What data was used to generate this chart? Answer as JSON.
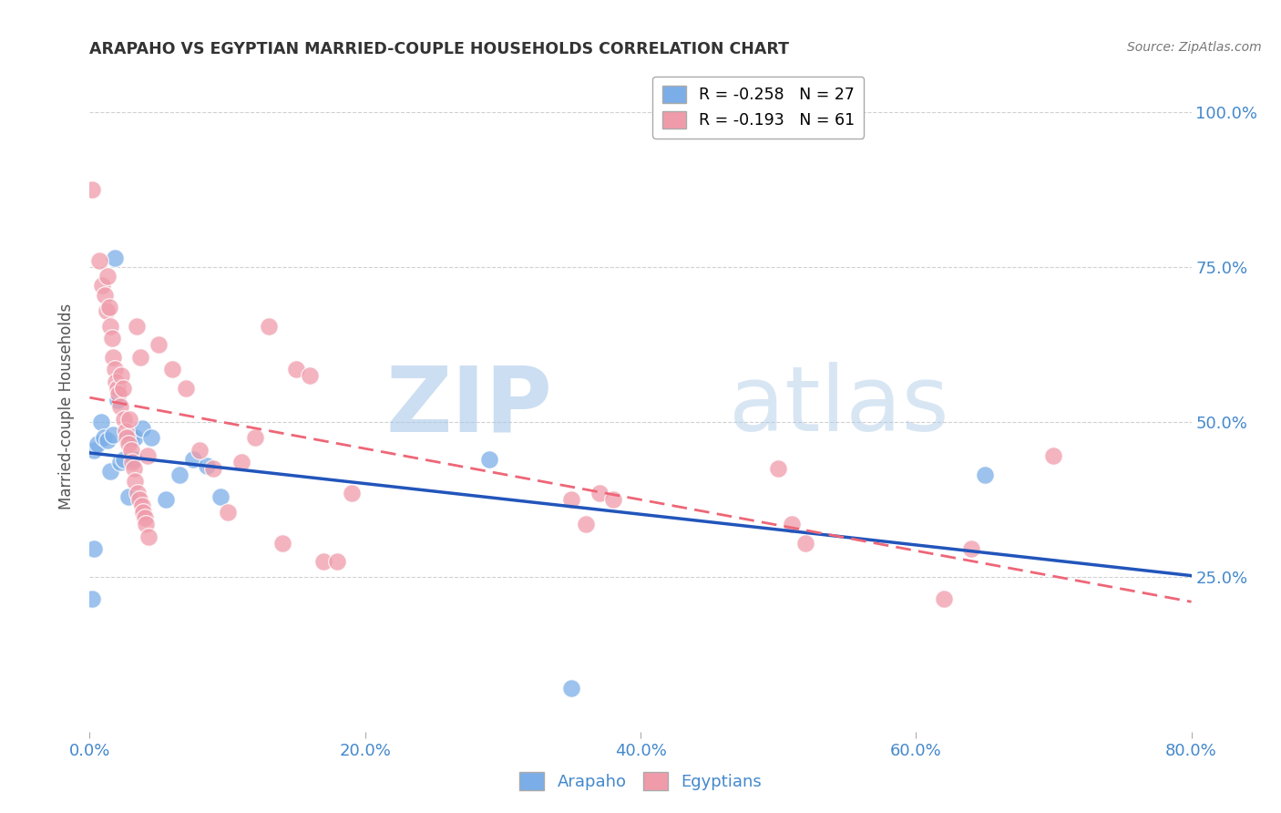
{
  "title": "ARAPAHO VS EGYPTIAN MARRIED-COUPLE HOUSEHOLDS CORRELATION CHART",
  "source": "Source: ZipAtlas.com",
  "ylabel": "Married-couple Households",
  "xlabel_ticks": [
    "0.0%",
    "20.0%",
    "40.0%",
    "60.0%",
    "80.0%"
  ],
  "ylabel_ticks": [
    "25.0%",
    "50.0%",
    "75.0%",
    "100.0%"
  ],
  "xlim": [
    0.0,
    0.8
  ],
  "ylim": [
    0.0,
    1.05
  ],
  "watermark_zip": "ZIP",
  "watermark_atlas": "atlas",
  "legend_entries": [
    {
      "label": "R = -0.258   N = 27",
      "color": "#7baee8"
    },
    {
      "label": "R = -0.193   N = 61",
      "color": "#f09baa"
    }
  ],
  "arapaho_color": "#7baee8",
  "egyptian_color": "#f09baa",
  "arapaho_line_color": "#2255bb",
  "egyptian_line_color": "#ee6677",
  "background_color": "#ffffff",
  "grid_color": "#cccccc",
  "title_color": "#333333",
  "tick_label_color": "#4488cc",
  "arapaho_points": [
    [
      0.003,
      0.455
    ],
    [
      0.006,
      0.465
    ],
    [
      0.008,
      0.5
    ],
    [
      0.01,
      0.475
    ],
    [
      0.013,
      0.47
    ],
    [
      0.015,
      0.42
    ],
    [
      0.017,
      0.48
    ],
    [
      0.018,
      0.765
    ],
    [
      0.02,
      0.535
    ],
    [
      0.022,
      0.435
    ],
    [
      0.025,
      0.44
    ],
    [
      0.028,
      0.38
    ],
    [
      0.03,
      0.475
    ],
    [
      0.032,
      0.44
    ],
    [
      0.033,
      0.475
    ],
    [
      0.038,
      0.49
    ],
    [
      0.045,
      0.475
    ],
    [
      0.055,
      0.375
    ],
    [
      0.065,
      0.415
    ],
    [
      0.075,
      0.44
    ],
    [
      0.085,
      0.43
    ],
    [
      0.095,
      0.38
    ],
    [
      0.003,
      0.295
    ],
    [
      0.002,
      0.215
    ],
    [
      0.29,
      0.44
    ],
    [
      0.35,
      0.07
    ],
    [
      0.65,
      0.415
    ]
  ],
  "egyptian_points": [
    [
      0.002,
      0.875
    ],
    [
      0.007,
      0.76
    ],
    [
      0.009,
      0.72
    ],
    [
      0.011,
      0.705
    ],
    [
      0.012,
      0.68
    ],
    [
      0.013,
      0.735
    ],
    [
      0.014,
      0.685
    ],
    [
      0.015,
      0.655
    ],
    [
      0.016,
      0.635
    ],
    [
      0.017,
      0.605
    ],
    [
      0.018,
      0.585
    ],
    [
      0.019,
      0.565
    ],
    [
      0.02,
      0.555
    ],
    [
      0.021,
      0.545
    ],
    [
      0.022,
      0.525
    ],
    [
      0.023,
      0.575
    ],
    [
      0.024,
      0.555
    ],
    [
      0.025,
      0.505
    ],
    [
      0.026,
      0.485
    ],
    [
      0.027,
      0.475
    ],
    [
      0.028,
      0.465
    ],
    [
      0.029,
      0.505
    ],
    [
      0.03,
      0.455
    ],
    [
      0.031,
      0.435
    ],
    [
      0.032,
      0.425
    ],
    [
      0.033,
      0.405
    ],
    [
      0.034,
      0.655
    ],
    [
      0.035,
      0.385
    ],
    [
      0.036,
      0.375
    ],
    [
      0.037,
      0.605
    ],
    [
      0.038,
      0.365
    ],
    [
      0.039,
      0.355
    ],
    [
      0.04,
      0.345
    ],
    [
      0.041,
      0.335
    ],
    [
      0.042,
      0.445
    ],
    [
      0.043,
      0.315
    ],
    [
      0.05,
      0.625
    ],
    [
      0.06,
      0.585
    ],
    [
      0.07,
      0.555
    ],
    [
      0.08,
      0.455
    ],
    [
      0.09,
      0.425
    ],
    [
      0.1,
      0.355
    ],
    [
      0.11,
      0.435
    ],
    [
      0.12,
      0.475
    ],
    [
      0.13,
      0.655
    ],
    [
      0.14,
      0.305
    ],
    [
      0.15,
      0.585
    ],
    [
      0.16,
      0.575
    ],
    [
      0.17,
      0.275
    ],
    [
      0.18,
      0.275
    ],
    [
      0.19,
      0.385
    ],
    [
      0.35,
      0.375
    ],
    [
      0.36,
      0.335
    ],
    [
      0.37,
      0.385
    ],
    [
      0.38,
      0.375
    ],
    [
      0.5,
      0.425
    ],
    [
      0.51,
      0.335
    ],
    [
      0.52,
      0.305
    ],
    [
      0.62,
      0.215
    ],
    [
      0.64,
      0.295
    ],
    [
      0.7,
      0.445
    ]
  ]
}
